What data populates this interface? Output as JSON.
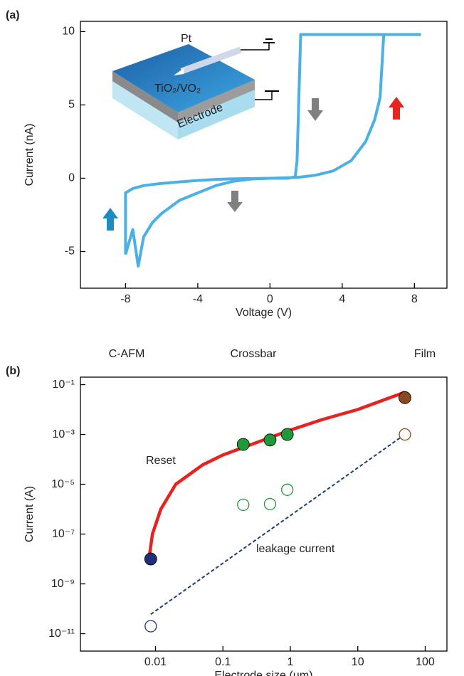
{
  "chart_data": [
    {
      "type": "line",
      "panel": "(a)",
      "x_label": "Voltage (V)",
      "y_label": "Current (nA)",
      "xlim": [
        -10.5,
        9.8
      ],
      "ylim": [
        -7.5,
        10.7
      ],
      "xticks": [
        -8,
        -4,
        0,
        4,
        8
      ],
      "yticks": [
        -5,
        0,
        5,
        10
      ],
      "annotations": [
        "Pt",
        "TiO₂/VO₂",
        "Electrode"
      ],
      "series": [
        {
          "color": "#4bb0e3",
          "x": [
            -8,
            -8,
            -7.6,
            -7,
            -6,
            -5,
            -4,
            -3,
            -2,
            -1,
            0,
            1,
            1.4,
            1.5,
            1.7,
            8.3,
            6.3,
            6.1,
            5.8,
            5.3,
            4.5,
            3.5,
            2.5,
            1.5,
            0,
            -1,
            -2,
            -3,
            -4,
            -5,
            -6,
            -6.5,
            -7,
            -7.3,
            -7.6,
            -8
          ],
          "values": [
            -5.2,
            -1.0,
            -0.7,
            -0.5,
            -0.35,
            -0.25,
            -0.15,
            -0.08,
            -0.04,
            -0.02,
            0,
            0,
            0.1,
            1.2,
            9.8,
            9.8,
            9.8,
            5.5,
            4.0,
            2.5,
            1.2,
            0.5,
            0.2,
            0.05,
            0,
            -0.05,
            -0.2,
            -0.5,
            -1.0,
            -1.5,
            -2.4,
            -3.0,
            -4.0,
            -6.0,
            -3.5,
            -5.2
          ]
        }
      ]
    },
    {
      "type": "scatter",
      "panel": "(b)",
      "x_label": "Electrode size (µm)",
      "y_label": "Current (A)",
      "log_x": true,
      "log_y": true,
      "xlim": [
        0.00077,
        210
      ],
      "ylim": [
        2e-12,
        0.2
      ],
      "xticks": [
        0.01,
        0.1,
        1,
        10,
        100
      ],
      "yticks": [
        {
          "value": 1e-11,
          "label": "10⁻¹¹"
        },
        {
          "value": 1e-09,
          "label": "10⁻⁹"
        },
        {
          "value": 1e-07,
          "label": "10⁻⁷"
        },
        {
          "value": 1e-05,
          "label": "10⁻⁵"
        },
        {
          "value": 0.001,
          "label": "10⁻³"
        },
        {
          "value": 0.1,
          "label": "10⁻¹"
        }
      ],
      "series": [
        {
          "name": "C-AFM",
          "color": "#1f2f7a",
          "x": [
            0.0085
          ],
          "values": [
            1e-08
          ],
          "leakage_values": [
            2e-11
          ]
        },
        {
          "name": "Crossbar",
          "color": "#1f9a3a",
          "x": [
            0.2,
            0.5,
            0.9
          ],
          "values": [
            0.0004,
            0.0006,
            0.001
          ],
          "leakage_values": [
            1.5e-06,
            1.6e-06,
            6e-06
          ]
        },
        {
          "name": "Film",
          "color": "#8a4a1f",
          "x": [
            50
          ],
          "values": [
            0.03
          ],
          "leakage_values": [
            0.001
          ]
        }
      ],
      "lines": [
        {
          "name": "Reset",
          "color": "#e8221f",
          "dashed": false,
          "x": [
            0.008,
            0.009,
            0.012,
            0.02,
            0.05,
            0.1,
            0.3,
            1,
            3,
            10,
            50
          ],
          "values": [
            1e-08,
            1e-07,
            1e-06,
            1e-05,
            6e-05,
            0.00015,
            0.00045,
            0.0015,
            0.004,
            0.01,
            0.05
          ]
        },
        {
          "name": "leakage current",
          "color": "#1f3f6e",
          "dashed": true,
          "x": [
            0.0085,
            50
          ],
          "values": [
            6e-11,
            0.001
          ]
        }
      ]
    }
  ]
}
